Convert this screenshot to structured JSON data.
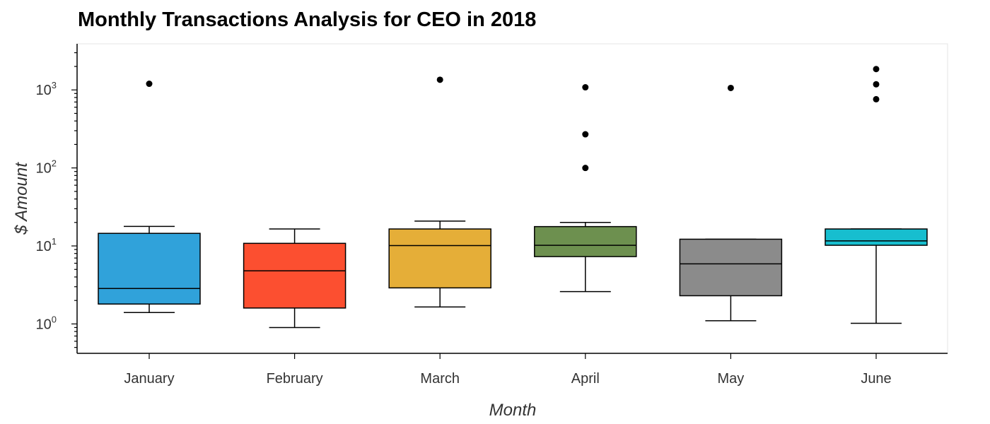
{
  "chart_data": {
    "type": "box",
    "title": "Monthly Transactions Analysis for CEO in 2018",
    "xlabel": "Month",
    "ylabel": "$ Amount",
    "yscale": "log",
    "ylim": [
      0.42,
      3900
    ],
    "y_ticks": [
      {
        "value": 1,
        "base": "10",
        "exp": "0"
      },
      {
        "value": 10,
        "base": "10",
        "exp": "1"
      },
      {
        "value": 100,
        "base": "10",
        "exp": "2"
      },
      {
        "value": 1000,
        "base": "10",
        "exp": "3"
      }
    ],
    "categories": [
      "January",
      "February",
      "March",
      "April",
      "May",
      "June"
    ],
    "boxes": [
      {
        "category": "January",
        "whisker_low": 1.4,
        "q1": 1.8,
        "median": 2.85,
        "q3": 14.5,
        "whisker_high": 17.8,
        "outliers": [
          1200
        ],
        "color": "#30a2da"
      },
      {
        "category": "February",
        "whisker_low": 0.9,
        "q1": 1.6,
        "median": 4.8,
        "q3": 10.8,
        "whisker_high": 16.5,
        "outliers": [],
        "color": "#fc4f30"
      },
      {
        "category": "March",
        "whisker_low": 1.65,
        "q1": 2.9,
        "median": 10.1,
        "q3": 16.5,
        "whisker_high": 20.8,
        "outliers": [
          1350
        ],
        "color": "#e5ae38"
      },
      {
        "category": "April",
        "whisker_low": 2.6,
        "q1": 7.3,
        "median": 10.2,
        "q3": 17.7,
        "whisker_high": 20.0,
        "outliers": [
          1080,
          270,
          100
        ],
        "color": "#6d904f"
      },
      {
        "category": "May",
        "whisker_low": 1.1,
        "q1": 2.3,
        "median": 5.9,
        "q3": 12.2,
        "whisker_high": 12.2,
        "outliers": [
          1060
        ],
        "color": "#8b8b8b"
      },
      {
        "category": "June",
        "whisker_low": 1.02,
        "q1": 10.2,
        "median": 11.6,
        "q3": 16.5,
        "whisker_high": 16.5,
        "outliers": [
          1850,
          1180,
          760
        ],
        "color": "#17becf"
      }
    ]
  }
}
